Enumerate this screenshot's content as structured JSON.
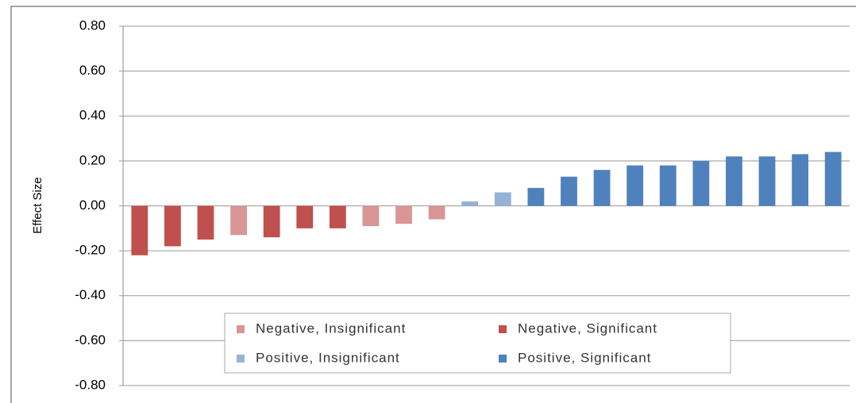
{
  "chart_data": {
    "type": "bar",
    "y_label": "Effect Size",
    "categories": [
      null,
      null,
      null,
      null,
      null,
      null,
      null,
      null,
      null,
      null,
      null,
      null,
      null,
      null,
      null,
      null,
      null,
      null,
      null,
      null,
      null,
      null
    ],
    "series": [
      {
        "name": "Negative, Insignificant",
        "color": "#d99694",
        "values": [
          null,
          null,
          null,
          -0.13,
          null,
          null,
          null,
          -0.09,
          -0.08,
          -0.06,
          null,
          null,
          null,
          null,
          null,
          null,
          null,
          null,
          null,
          null,
          null,
          null
        ]
      },
      {
        "name": "Negative, Significant",
        "color": "#c0504d",
        "values": [
          -0.22,
          -0.18,
          -0.15,
          null,
          -0.14,
          -0.1,
          -0.1,
          null,
          null,
          null,
          null,
          null,
          null,
          null,
          null,
          null,
          null,
          null,
          null,
          null,
          null,
          null
        ]
      },
      {
        "name": "Positive, Insignificant",
        "color": "#95b3d7",
        "values": [
          null,
          null,
          null,
          null,
          null,
          null,
          null,
          null,
          null,
          null,
          0.02,
          0.06,
          null,
          null,
          null,
          null,
          null,
          null,
          null,
          null,
          null,
          null
        ]
      },
      {
        "name": "Positive, Significant",
        "color": "#4f81bd",
        "values": [
          null,
          null,
          null,
          null,
          null,
          null,
          null,
          null,
          null,
          null,
          null,
          null,
          0.08,
          0.13,
          0.16,
          0.18,
          0.18,
          0.2,
          0.22,
          0.22,
          0.23,
          0.24
        ]
      }
    ],
    "ylim": [
      -0.8,
      0.8
    ],
    "yticks": [
      {
        "value": -0.8,
        "label": "-0.80"
      },
      {
        "value": -0.6,
        "label": "-0.60"
      },
      {
        "value": -0.4,
        "label": "-0.40"
      },
      {
        "value": -0.2,
        "label": "-0.20"
      },
      {
        "value": 0,
        "label": "0.00"
      },
      {
        "value": 0.2,
        "label": "0.20"
      },
      {
        "value": 0.4,
        "label": "0.40"
      },
      {
        "value": 0.6,
        "label": "0.60"
      },
      {
        "value": 0.8,
        "label": "0.80"
      }
    ],
    "grid": true,
    "legend": "bottom"
  }
}
